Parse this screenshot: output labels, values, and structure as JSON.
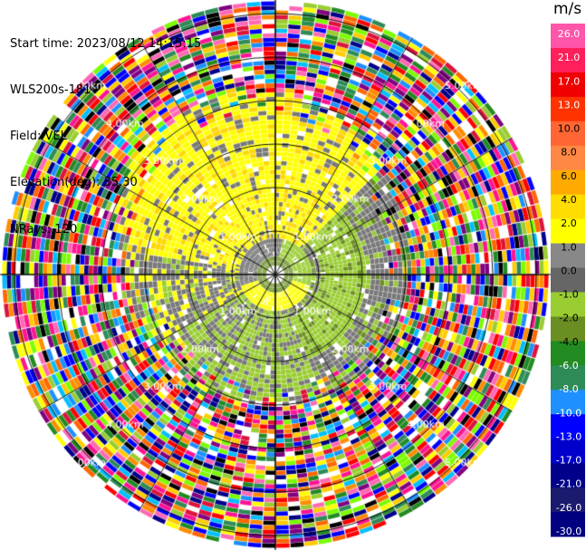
{
  "header": {
    "start_time": "Start time: 2023/08/12 14:15:15",
    "instrument": "WLS200s-181",
    "field": "Field: VEL",
    "elevation": "Elevation(deg): 35.30",
    "nrays": "NRays: 120"
  },
  "colorbar": {
    "unit": "m/s",
    "ticks": [
      "26.0",
      "21.0",
      "17.0",
      "13.0",
      "10.0",
      "8.0",
      "6.0",
      "4.0",
      "2.0",
      "1.0",
      "0.0",
      "-1.0",
      "-2.0",
      "-4.0",
      "-6.0",
      "-8.0",
      "-10.0",
      "-13.0",
      "-17.0",
      "-21.0",
      "-26.0",
      "-30.0"
    ],
    "colors": [
      "#ff55aa",
      "#ff1f5a",
      "#f00000",
      "#ff3300",
      "#ff6633",
      "#ff8844",
      "#ffaa00",
      "#ffdd00",
      "#ffff00",
      "#888888",
      "#666666",
      "#9acd32",
      "#6b8e23",
      "#228b22",
      "#2e8b57",
      "#1e90ff",
      "#0000ff",
      "#0000cd",
      "#00008b",
      "#1a1a6e",
      "#000080"
    ]
  },
  "ppi": {
    "range_labels": [
      "1.00km",
      "2.00km",
      "3.00km",
      "4.00km",
      "5.00km"
    ],
    "colors": {
      "yellow": "#ffff00",
      "yellow_dark": "#ffd700",
      "gray": "#787878",
      "green_light": "#9acd32",
      "green": "#6b8e23",
      "noise": [
        "#ff1493",
        "#ff6600",
        "#ffcc00",
        "#00008b",
        "#0000ff",
        "#228b22",
        "#9acd32",
        "#ff0000",
        "#800080",
        "#00bfff",
        "#ffff00",
        "#ff69b4",
        "#2e8b57",
        "#000000",
        "#ff8c00",
        "#1e90ff",
        "#dc143c",
        "#7cfc00"
      ]
    }
  }
}
